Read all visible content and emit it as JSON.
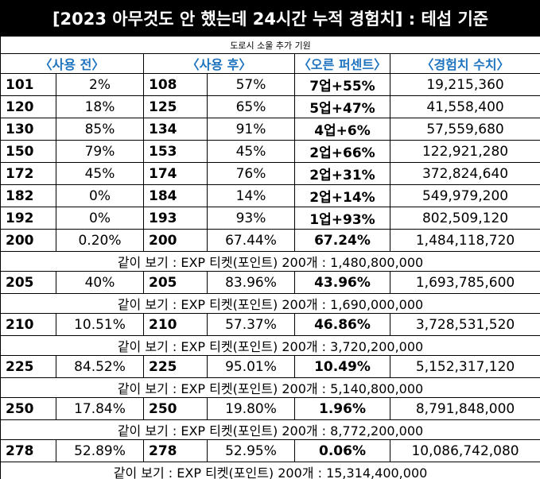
{
  "title": "[2023 아무것도 안 했는데 24시간 누적 경험치] : 테섭 기준",
  "subtitle": "도로시 소울 추가 기원",
  "header": [
    "〈사용 전〉",
    "〈사용 후〉",
    "〈오른 퍼센트〉",
    "〈경험치 수치〉"
  ],
  "rows": [
    {
      "cells": [
        "101",
        "2%",
        "108",
        "57%",
        "7업+55%",
        "19,215,360"
      ]
    },
    {
      "cells": [
        "120",
        "18%",
        "125",
        "65%",
        "5업+47%",
        "41,558,400"
      ]
    },
    {
      "cells": [
        "130",
        "85%",
        "134",
        "91%",
        "4업+6%",
        "57,559,680"
      ]
    },
    {
      "cells": [
        "150",
        "79%",
        "153",
        "45%",
        "2업+66%",
        "122,921,280"
      ]
    },
    {
      "cells": [
        "172",
        "45%",
        "174",
        "76%",
        "2업+31%",
        "372,824,640"
      ]
    },
    {
      "cells": [
        "182",
        "0%",
        "184",
        "14%",
        "2업+14%",
        "549,979,200"
      ]
    },
    {
      "cells": [
        "192",
        "0%",
        "193",
        "93%",
        "1업+93%",
        "802,509,120"
      ]
    },
    {
      "cells": [
        "200",
        "0.20%",
        "200",
        "67.44%",
        "67.24%",
        "1,484,118,720"
      ],
      "note": "같이 보기 : EXP 티켓(포인트) 200개 : 1,480,800,000"
    },
    {
      "cells": [
        "205",
        "40%",
        "205",
        "83.96%",
        "43.96%",
        "1,693,785,600"
      ],
      "note": "같이 보기 : EXP 티켓(포인트) 200개 : 1,690,000,000"
    },
    {
      "cells": [
        "210",
        "10.51%",
        "210",
        "57.37%",
        "46.86%",
        "3,728,531,520"
      ],
      "note": "같이 보기 : EXP 티켓(포인트) 200개 : 3,720,200,000"
    },
    {
      "cells": [
        "225",
        "84.52%",
        "225",
        "95.01%",
        "10.49%",
        "5,152,317,120"
      ],
      "note": "같이 보기 : EXP 티켓(포인트) 200개 : 5,140,800,000"
    },
    {
      "cells": [
        "250",
        "17.84%",
        "250",
        "19.80%",
        "1.96%",
        "8,791,848,000"
      ],
      "note": "같이 보기 : EXP 티켓(포인트) 200개 : 8,772,200,000"
    },
    {
      "cells": [
        "278",
        "52.89%",
        "278",
        "52.95%",
        "0.06%",
        "10,086,742,080"
      ],
      "note": "같이 보기 : EXP 티켓(포인트) 200개 : 15,314,400,000"
    }
  ]
}
